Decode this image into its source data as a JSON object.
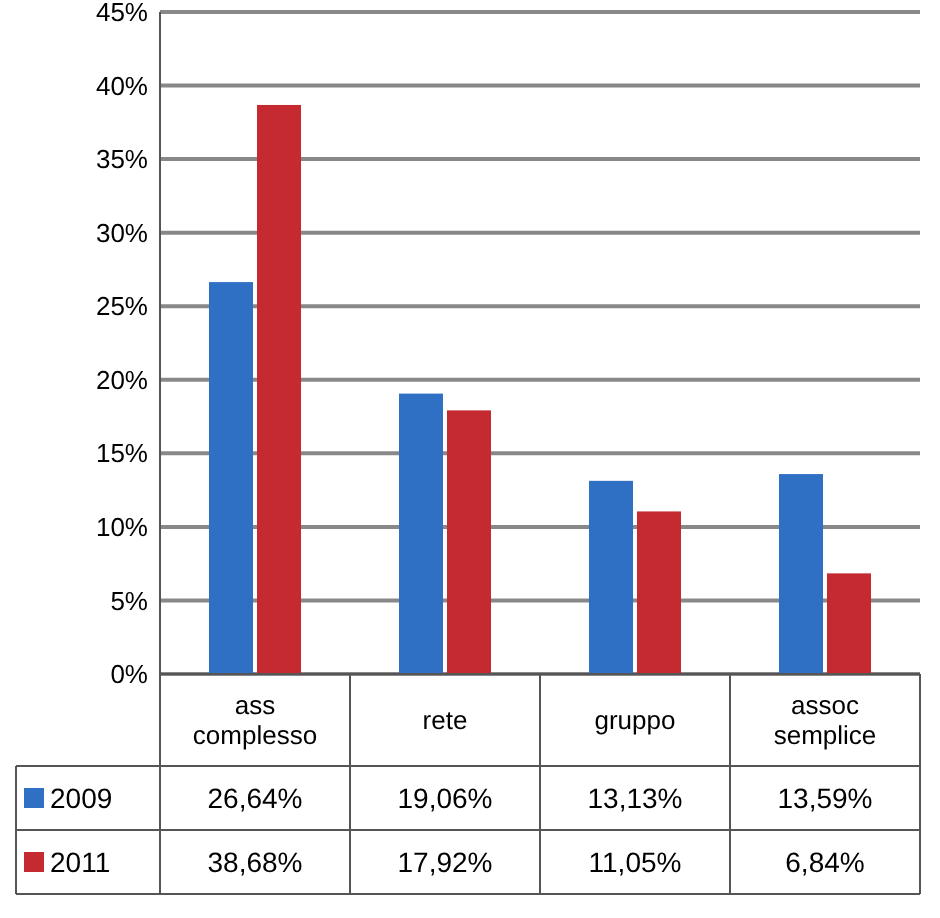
{
  "chart_data": {
    "type": "bar",
    "categories": [
      "ass\ncomplesso",
      "rete",
      "gruppo",
      "assoc\nsemplice"
    ],
    "series": [
      {
        "name": "2009",
        "color": "#2f6fc4",
        "values": [
          26.64,
          19.06,
          13.13,
          13.59
        ],
        "value_labels": [
          "26,64%",
          "19,06%",
          "13,13%",
          "13,59%"
        ]
      },
      {
        "name": "2011",
        "color": "#c42a2f",
        "values": [
          38.68,
          17.92,
          11.05,
          6.84
        ],
        "value_labels": [
          "38,68%",
          "17,92%",
          "11,05%",
          "6,84%"
        ]
      }
    ],
    "ylim": [
      0,
      45
    ],
    "yticks": [
      {
        "value": 0,
        "label": "0%"
      },
      {
        "value": 5,
        "label": "5%"
      },
      {
        "value": 10,
        "label": "10%"
      },
      {
        "value": 15,
        "label": "15%"
      },
      {
        "value": 20,
        "label": "20%"
      },
      {
        "value": 25,
        "label": "25%"
      },
      {
        "value": 30,
        "label": "30%"
      },
      {
        "value": 35,
        "label": "35%"
      },
      {
        "value": 40,
        "label": "40%"
      },
      {
        "value": 45,
        "label": "45%"
      }
    ],
    "grid": "y",
    "legend": "bottom"
  }
}
